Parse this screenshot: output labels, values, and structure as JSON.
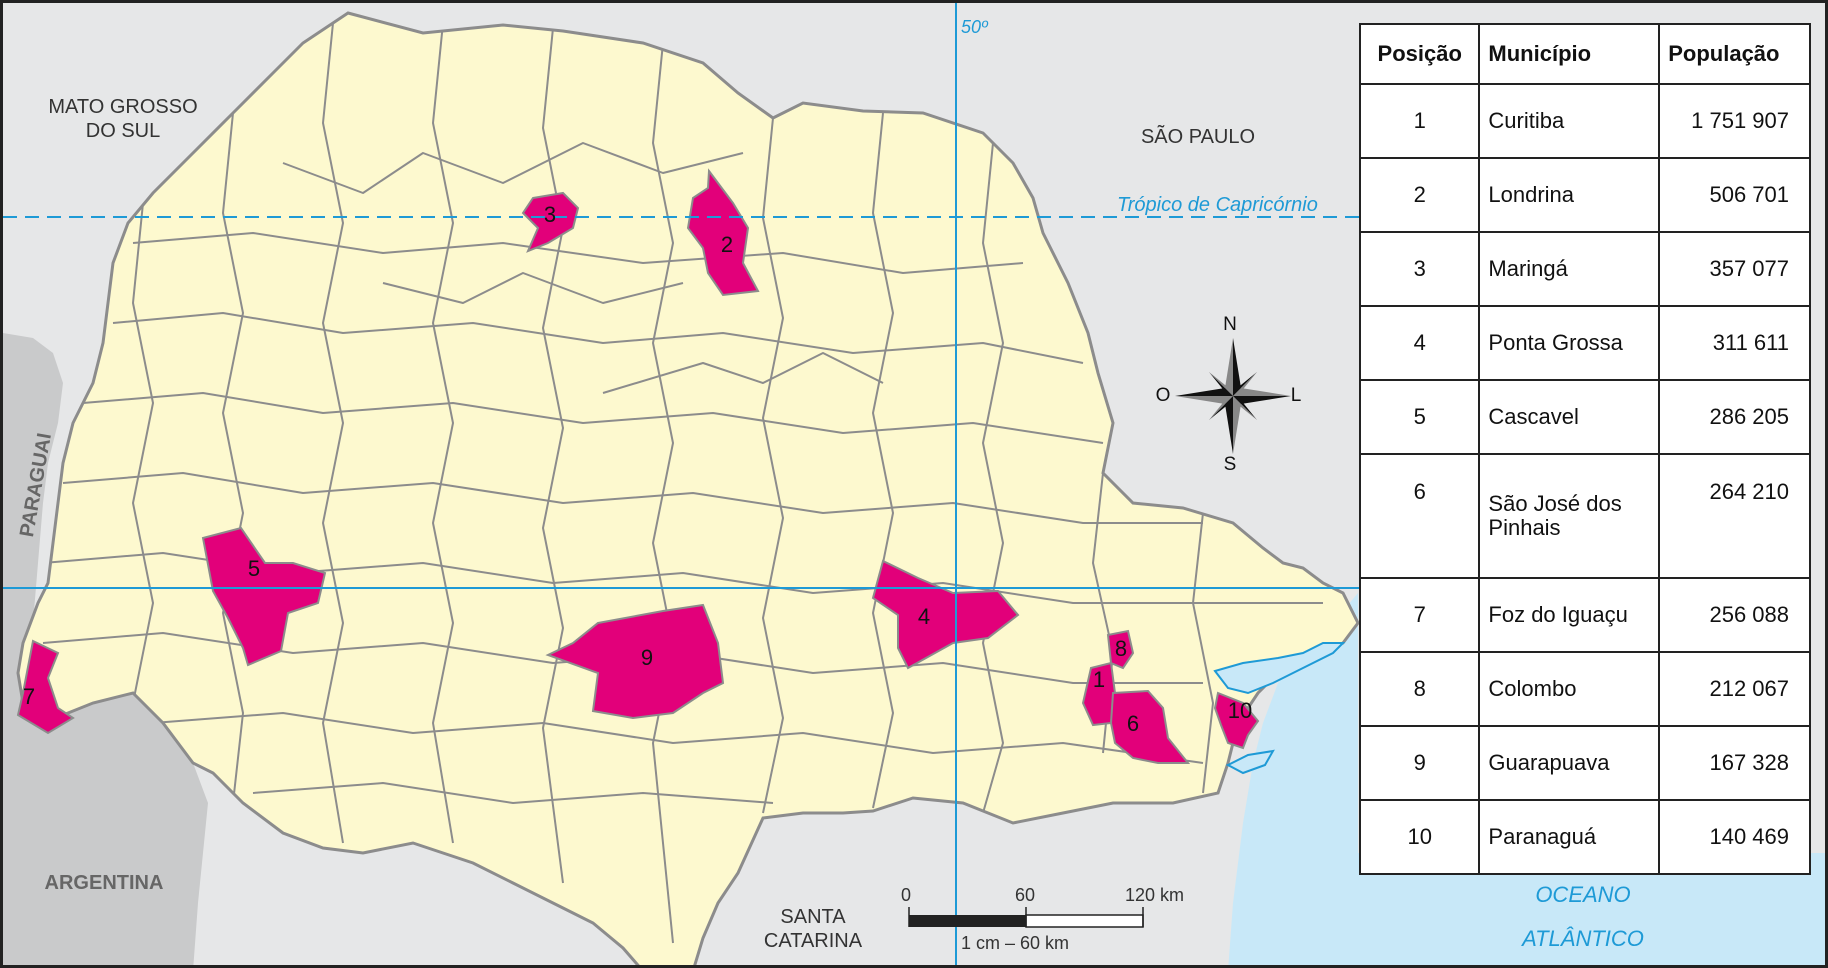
{
  "neighbors": {
    "mato_grosso_do_sul": [
      "MATO GROSSO",
      "DO SUL"
    ],
    "sao_paulo": "SÃO PAULO",
    "paraguai": "PARAGUAI",
    "argentina": "ARGENTINA",
    "santa_catarina": [
      "SANTA",
      "CATARINA"
    ],
    "ocean": [
      "OCEANO",
      "ATLÂNTICO"
    ]
  },
  "lines": {
    "tropic": "Trópico de Capricórnio",
    "meridian": "50º"
  },
  "compass": {
    "north": "N",
    "south": "S",
    "east": "L",
    "west": "O"
  },
  "scale": {
    "ticks": [
      "0",
      "60",
      "120 km"
    ],
    "caption": "1 cm – 60 km"
  },
  "table": {
    "headers": [
      "Posição",
      "Município",
      "População"
    ],
    "rows": [
      {
        "pos": "1",
        "name": "Curitiba",
        "pop": "1 751 907"
      },
      {
        "pos": "2",
        "name": "Londrina",
        "pop": "506 701"
      },
      {
        "pos": "3",
        "name": "Maringá",
        "pop": "357 077"
      },
      {
        "pos": "4",
        "name": "Ponta Grossa",
        "pop": "311 611"
      },
      {
        "pos": "5",
        "name": "Cascavel",
        "pop": "286 205"
      },
      {
        "pos": "6",
        "name": "São José dos Pinhais",
        "pop": "264 210"
      },
      {
        "pos": "7",
        "name": "Foz do Iguaçu",
        "pop": "256 088"
      },
      {
        "pos": "8",
        "name": "Colombo",
        "pop": "212 067"
      },
      {
        "pos": "9",
        "name": "Guarapuava",
        "pop": "167 328"
      },
      {
        "pos": "10",
        "name": "Paranaguá",
        "pop": "140 469"
      }
    ]
  },
  "city_markers": [
    "1",
    "2",
    "3",
    "4",
    "5",
    "6",
    "7",
    "8",
    "9",
    "10"
  ],
  "colors": {
    "state_fill": "#fdf9cf",
    "neighbor_fill": "#e6e7e8",
    "foreign_fill": "#c9cacb",
    "ocean": "#c8e8f8",
    "highlight": "#e2007a",
    "lines": "#1e9ad6",
    "borders": "#8c8c8c"
  }
}
